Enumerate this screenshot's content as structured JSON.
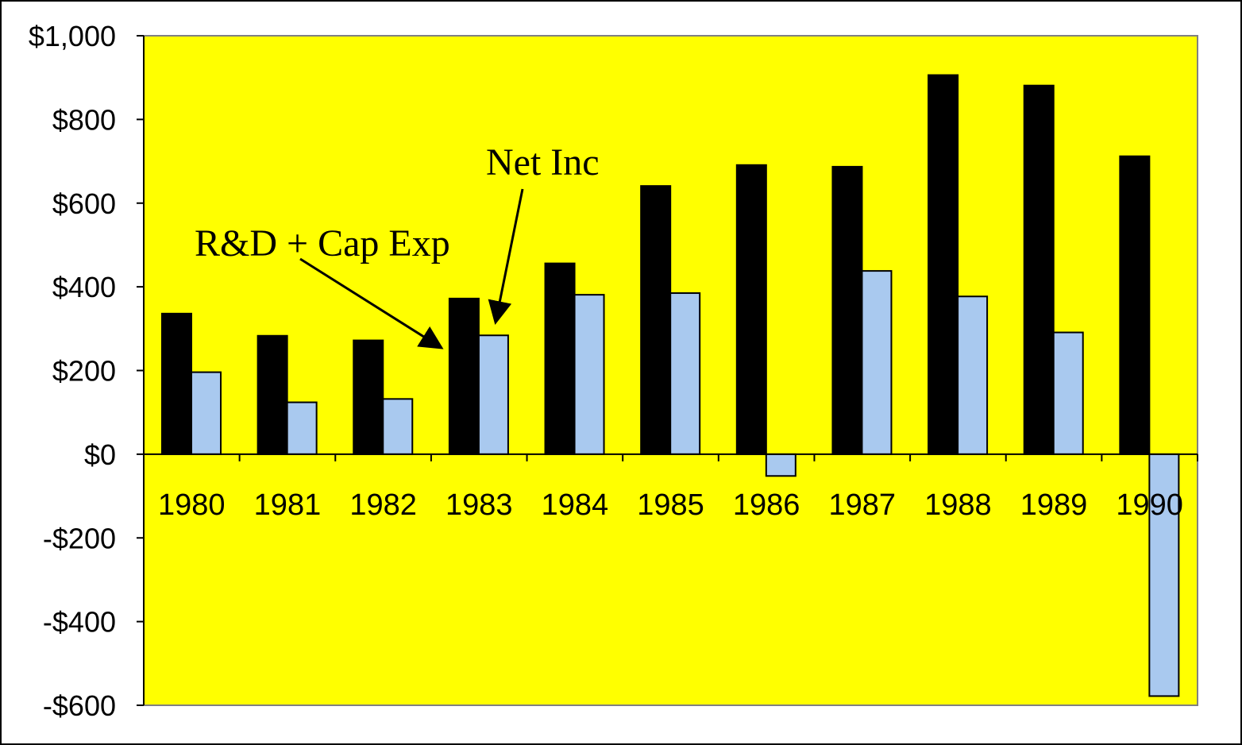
{
  "chart_data": {
    "type": "bar",
    "categories": [
      "1980",
      "1981",
      "1982",
      "1983",
      "1984",
      "1985",
      "1986",
      "1987",
      "1988",
      "1989",
      "1990"
    ],
    "series": [
      {
        "name": "R&D + Cap Exp",
        "color": "#000000",
        "values": [
          336,
          283,
          272,
          372,
          456,
          641,
          691,
          687,
          906,
          881,
          712
        ]
      },
      {
        "name": "Net Inc",
        "color": "#a9c9ef",
        "values": [
          196,
          124,
          132,
          284,
          381,
          385,
          -52,
          438,
          377,
          291,
          -578
        ]
      }
    ],
    "ylim": [
      -600,
      1000
    ],
    "yticks": [
      1000,
      800,
      600,
      400,
      200,
      0,
      -200,
      -400,
      -600
    ],
    "ytick_labels": [
      "$1,000",
      "$800",
      "$600",
      "$400",
      "$200",
      "$0",
      "-$200",
      "-$400",
      "-$600"
    ],
    "plot_background": "#ffff00",
    "annotations": [
      {
        "text": "R&D + Cap Exp",
        "points_to": "1983 R&D + Cap Exp bar"
      },
      {
        "text": "Net Inc",
        "points_to": "1983 Net Inc bar"
      }
    ],
    "legend": "none",
    "grid": false
  }
}
